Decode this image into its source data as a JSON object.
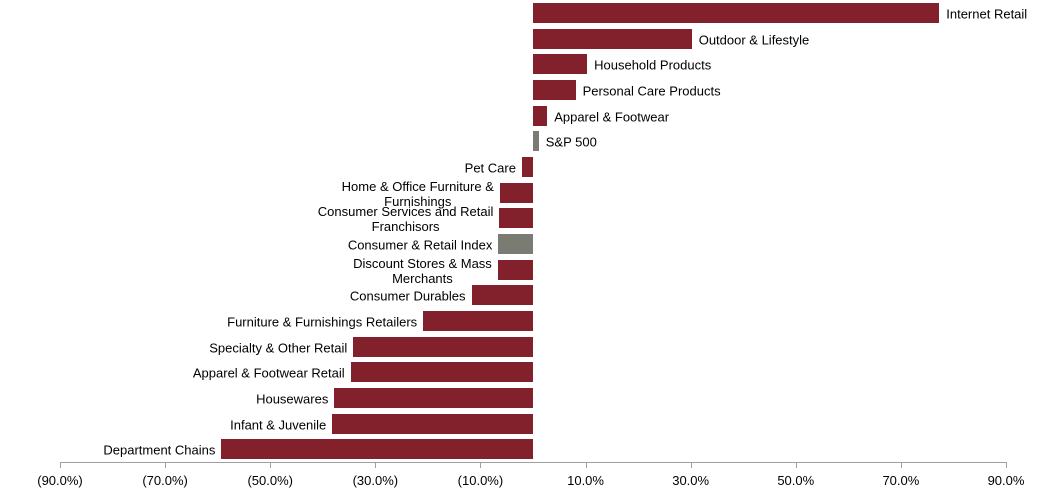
{
  "chart_data": {
    "type": "bar",
    "orientation": "horizontal",
    "title": "",
    "xlabel": "",
    "ylabel": "",
    "xlim": [
      -90,
      90
    ],
    "grid": false,
    "legend": false,
    "value_unit": "percent",
    "negative_format": "parentheses",
    "bar_color": "#82202b",
    "benchmark_color": "#7a7b73",
    "benchmark_indices": [
      5,
      9
    ],
    "categories": [
      "Internet Retail",
      "Outdoor & Lifestyle",
      "Household Products",
      "Personal Care Products",
      "Apparel & Footwear",
      "S&P 500",
      "Pet Care",
      "Home & Office Furniture &\nFurnishings",
      "Consumer Services and Retail\nFranchisors",
      "Consumer & Retail Index",
      "Discount Stores & Mass\nMerchants",
      "Consumer Durables",
      "Furniture & Furnishings Retailers",
      "Specialty & Other Retail",
      "Apparel & Footwear Retail",
      "Housewares",
      "Infant & Juvenile",
      "Department Chains"
    ],
    "values": [
      77.3,
      30.2,
      10.3,
      8.1,
      2.7,
      1.1,
      -2.1,
      -6.3,
      -6.4,
      -6.6,
      -6.7,
      -11.7,
      -20.9,
      -34.2,
      -34.7,
      -37.8,
      -38.2,
      -59.3
    ],
    "x_ticks": [
      {
        "label": "(90.0%)",
        "value": -90
      },
      {
        "label": "(70.0%)",
        "value": -70
      },
      {
        "label": "(50.0%)",
        "value": -50
      },
      {
        "label": "(30.0%)",
        "value": -30
      },
      {
        "label": "(10.0%)",
        "value": -10
      },
      {
        "label": "10.0%",
        "value": 10
      },
      {
        "label": "30.0%",
        "value": 30
      },
      {
        "label": "50.0%",
        "value": 50
      },
      {
        "label": "70.0%",
        "value": 70
      },
      {
        "label": "90.0%",
        "value": 90
      }
    ]
  }
}
